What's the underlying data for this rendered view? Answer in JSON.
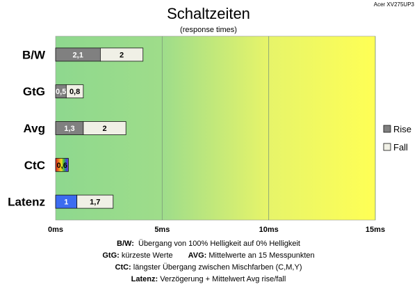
{
  "model": "Acer XV275UP3",
  "chart_data": {
    "type": "bar",
    "stacked": true,
    "orientation": "horizontal",
    "title": "Schaltzeiten",
    "subtitle": "(response times)",
    "categories": [
      "B/W",
      "GtG",
      "Avg",
      "CtC",
      "Latenz"
    ],
    "series": [
      {
        "name": "Rise",
        "values": [
          2.1,
          0.5,
          1.3,
          0.6,
          1
        ],
        "labels": [
          "2,1",
          "0,5",
          "1,3",
          "0,6",
          "1"
        ]
      },
      {
        "name": "Fall",
        "values": [
          2,
          0.8,
          2,
          null,
          1.7
        ],
        "labels": [
          "2",
          "0,8",
          "2",
          "",
          "1,7"
        ]
      }
    ],
    "xlim": [
      0,
      15
    ],
    "x_ticks": [
      0,
      5,
      10,
      15
    ],
    "x_tick_labels": [
      "0ms",
      "5ms",
      "10ms",
      "15ms"
    ],
    "gridlines": "vertical",
    "background_gradient": [
      "#8ed88e",
      "#ffff55"
    ],
    "legend": {
      "position": "right",
      "entries": [
        "Rise",
        "Fall"
      ]
    },
    "colors": {
      "rise": "#808080",
      "fall": "#f0f0e6",
      "latenz_rise": "#3c6cf0",
      "ctc": [
        "#d02020",
        "#f08020",
        "#f0e020",
        "#40b040",
        "#3050e0",
        "#9030c0"
      ]
    }
  },
  "notes": [
    {
      "key": "B/W:",
      "text": "Übergang von 100% Helligkeit auf 0% Helligkeit"
    },
    {
      "key": "GtG:",
      "text": "kürzeste Werte",
      "key2": "AVG:",
      "text2": "Mittelwerte an 15 Messpunkten"
    },
    {
      "key": "CtC:",
      "text": "längster Übergang zwischen Mischfarben (C,M,Y)"
    },
    {
      "key": "Latenz:",
      "text": "Verzögerung + Mittelwert Avg rise/fall"
    }
  ]
}
